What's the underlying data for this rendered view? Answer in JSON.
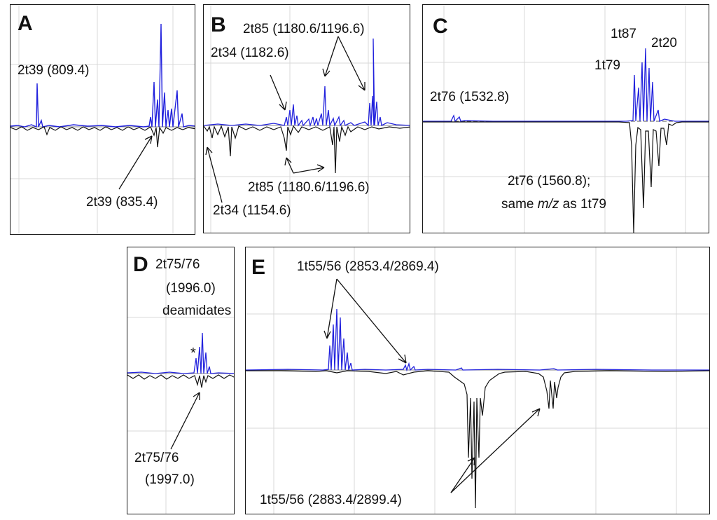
{
  "panels": [
    {
      "id": "A",
      "label": "A",
      "annotations": [
        "2t39 (809.4)",
        "2t39 (835.4)"
      ]
    },
    {
      "id": "B",
      "label": "B",
      "annotations": [
        "2t85 (1180.6/1196.6)",
        "2t34 (1182.6)",
        "2t85 (1180.6/1196.6)",
        "2t34 (1154.6)"
      ]
    },
    {
      "id": "C",
      "label": "C",
      "annotations": [
        "1t87",
        "2t20",
        "1t79",
        "2t76 (1532.8)",
        "2t76 (1560.8);",
        "same",
        "m/z",
        "as 1t79"
      ]
    },
    {
      "id": "D",
      "label": "D",
      "annotations": [
        "2t75/76",
        "(1996.0)",
        "deamidates",
        "*",
        "2t75/76",
        "(1997.0)"
      ]
    },
    {
      "id": "E",
      "label": "E",
      "annotations": [
        "1t55/56 (2853.4/2869.4)",
        "1t55/56 (2883.4/2899.4)"
      ]
    }
  ],
  "colors": {
    "positive_trace": "#2222dd",
    "negative_trace": "#111111",
    "grid": "#d9d9d9",
    "frame": "#1a1a1a"
  },
  "chart_data": [
    {
      "type": "line",
      "panel": "A",
      "series": [
        {
          "values": [
            {
              "x": 809.4,
              "y": 0.45
            },
            {
              "x": 835.4,
              "y": -0.22
            }
          ]
        }
      ]
    },
    {
      "type": "line",
      "panel": "B",
      "series": [
        {
          "values": [
            {
              "x": 1180.6,
              "y": 0.98
            },
            {
              "x": 1182.6,
              "y": 0.25
            },
            {
              "x": 1196.6,
              "y": 0.42
            }
          ]
        },
        {
          "values": [
            {
              "x": 1154.6,
              "y": -0.35
            },
            {
              "x": 1180.6,
              "y": -0.25
            },
            {
              "x": 1196.6,
              "y": -0.28
            }
          ]
        }
      ]
    },
    {
      "type": "line",
      "panel": "C",
      "series": [
        {
          "values": [
            {
              "x": 1532.8,
              "y": 0.04
            }
          ]
        },
        {
          "values": [
            {
              "x": 1560.8,
              "y": -0.62
            }
          ]
        }
      ]
    },
    {
      "type": "line",
      "panel": "D",
      "series": [
        {
          "values": [
            {
              "x": 1996.0,
              "y": 0.42
            }
          ]
        },
        {
          "values": [
            {
              "x": 1997.0,
              "y": -0.1
            }
          ]
        }
      ]
    },
    {
      "type": "line",
      "panel": "E",
      "series": [
        {
          "values": [
            {
              "x": 2853.4,
              "y": 0.4
            },
            {
              "x": 2869.4,
              "y": 0.02
            }
          ]
        },
        {
          "values": [
            {
              "x": 2883.4,
              "y": -0.78
            },
            {
              "x": 2899.4,
              "y": -0.23
            }
          ]
        }
      ]
    }
  ]
}
